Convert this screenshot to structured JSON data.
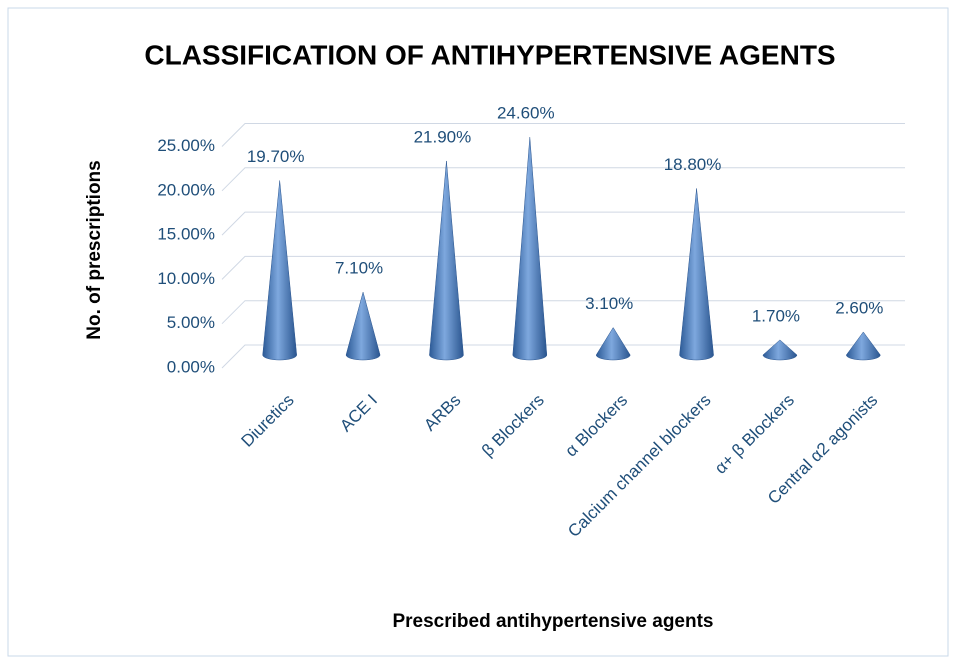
{
  "chart_data": {
    "type": "cone",
    "title": "CLASSIFICATION OF ANTIHYPERTENSIVE AGENTS",
    "x_label": "Prescribed antihypertensive agents",
    "y_label": "No. of prescriptions",
    "categories": [
      "Diuretics",
      "ACE I",
      "ARBs",
      "β  Blockers",
      "α Blockers",
      "Calcium channel blockers",
      "α+ β  Blockers",
      "Central  α2 agonists"
    ],
    "values": [
      19.7,
      7.1,
      21.9,
      24.6,
      3.1,
      18.8,
      1.7,
      2.6
    ],
    "value_labels": [
      "19.70%",
      "7.10%",
      "21.90%",
      "24.60%",
      "3.10%",
      "18.80%",
      "1.70%",
      "2.60%"
    ],
    "color": "#4a7ec0",
    "ylim": [
      0,
      25
    ],
    "yticks": [
      {
        "value": 0,
        "label": "0.00%"
      },
      {
        "value": 5,
        "label": "5.00%"
      },
      {
        "value": 10,
        "label": "10.00%"
      },
      {
        "value": 15,
        "label": "15.00%"
      },
      {
        "value": 20,
        "label": "20.00%"
      },
      {
        "value": 25,
        "label": "25.00%"
      }
    ],
    "grid": true
  }
}
